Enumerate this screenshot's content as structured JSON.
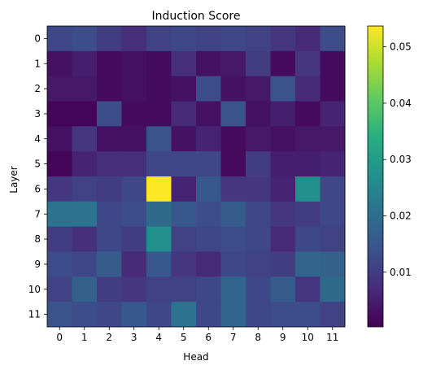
{
  "chart_data": {
    "type": "heatmap",
    "title": "Induction Score",
    "xlabel": "Head",
    "ylabel": "Layer",
    "x_categories": [
      "0",
      "1",
      "2",
      "3",
      "4",
      "5",
      "6",
      "7",
      "8",
      "9",
      "10",
      "11"
    ],
    "y_categories": [
      "0",
      "1",
      "2",
      "3",
      "4",
      "5",
      "6",
      "7",
      "8",
      "9",
      "10",
      "11"
    ],
    "colormap": "viridis",
    "colorbar": {
      "vmin": 0.0003,
      "vmax": 0.0537,
      "ticks": [
        0.01,
        0.02,
        0.03,
        0.04,
        0.05
      ],
      "tick_labels": [
        "0.01",
        "0.02",
        "0.03",
        "0.04",
        "0.05"
      ]
    },
    "values": [
      [
        0.012,
        0.013,
        0.01,
        0.008,
        0.011,
        0.012,
        0.011,
        0.012,
        0.011,
        0.009,
        0.007,
        0.013
      ],
      [
        0.003,
        0.005,
        0.002,
        0.003,
        0.002,
        0.008,
        0.003,
        0.004,
        0.01,
        0.002,
        0.009,
        0.002
      ],
      [
        0.004,
        0.004,
        0.002,
        0.003,
        0.002,
        0.003,
        0.013,
        0.003,
        0.004,
        0.014,
        0.007,
        0.002
      ],
      [
        0.001,
        0.001,
        0.013,
        0.002,
        0.002,
        0.007,
        0.003,
        0.014,
        0.003,
        0.005,
        0.002,
        0.006
      ],
      [
        0.003,
        0.009,
        0.003,
        0.003,
        0.014,
        0.003,
        0.006,
        0.002,
        0.004,
        0.003,
        0.004,
        0.004
      ],
      [
        0.001,
        0.006,
        0.008,
        0.008,
        0.012,
        0.012,
        0.012,
        0.002,
        0.01,
        0.005,
        0.005,
        0.006
      ],
      [
        0.009,
        0.011,
        0.01,
        0.012,
        0.0537,
        0.006,
        0.015,
        0.009,
        0.009,
        0.006,
        0.027,
        0.012
      ],
      [
        0.021,
        0.021,
        0.012,
        0.013,
        0.019,
        0.015,
        0.013,
        0.016,
        0.012,
        0.009,
        0.01,
        0.012
      ],
      [
        0.01,
        0.008,
        0.012,
        0.01,
        0.027,
        0.011,
        0.012,
        0.013,
        0.012,
        0.007,
        0.012,
        0.011
      ],
      [
        0.013,
        0.012,
        0.016,
        0.007,
        0.015,
        0.009,
        0.007,
        0.012,
        0.011,
        0.01,
        0.018,
        0.017
      ],
      [
        0.011,
        0.017,
        0.01,
        0.009,
        0.011,
        0.011,
        0.012,
        0.018,
        0.012,
        0.016,
        0.009,
        0.019
      ],
      [
        0.014,
        0.013,
        0.012,
        0.015,
        0.012,
        0.021,
        0.012,
        0.018,
        0.012,
        0.013,
        0.013,
        0.011
      ]
    ]
  }
}
